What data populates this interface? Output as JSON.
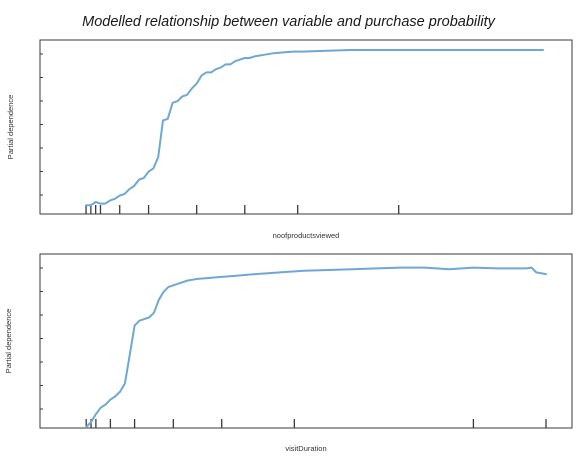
{
  "figure": {
    "title": "Modelled relationship between variable and purchase probability",
    "line_color": "#6fa8d2"
  },
  "chart_data": [
    {
      "type": "line",
      "title": "",
      "xlabel": "noofproductsviewed",
      "ylabel": "Partial dependence",
      "xlim": [
        0,
        100
      ],
      "ylim": [
        0,
        100
      ],
      "grid": false,
      "x": [
        5,
        6,
        7,
        8,
        9,
        10,
        11,
        12,
        13,
        14,
        15,
        16,
        17,
        18,
        19,
        20,
        21,
        22,
        23,
        24,
        25,
        26,
        27,
        28,
        29,
        30,
        31,
        32,
        33,
        34,
        35,
        36,
        37,
        38,
        39,
        40,
        42,
        44,
        46,
        48,
        50,
        55,
        60,
        65,
        70,
        75,
        80,
        85,
        90,
        95,
        100
      ],
      "series": [
        {
          "values": [
            3,
            3,
            5,
            4,
            4,
            6,
            7,
            9,
            10,
            13,
            15,
            19,
            20,
            24,
            26,
            33,
            56,
            57,
            67,
            68,
            71,
            72,
            76,
            79,
            84,
            86,
            86,
            88,
            89,
            91,
            91,
            93,
            94,
            95,
            95,
            96,
            97,
            98,
            98.5,
            99,
            99,
            99.5,
            100,
            100,
            100,
            100,
            100,
            100,
            100,
            100,
            100
          ]
        }
      ],
      "rug": [
        5,
        6,
        7,
        8,
        12,
        18,
        28,
        38,
        49,
        70
      ]
    },
    {
      "type": "line",
      "title": "",
      "xlabel": "visitDuration",
      "ylabel": "Partial dependence",
      "xlim": [
        0,
        100
      ],
      "ylim": [
        0,
        100
      ],
      "grid": false,
      "x": [
        5,
        6,
        7,
        8,
        9,
        10,
        11,
        12,
        13,
        14,
        15,
        16,
        17,
        18,
        19,
        20,
        21,
        22,
        23,
        24,
        25,
        26,
        27,
        28,
        30,
        32,
        34,
        36,
        38,
        40,
        45,
        50,
        55,
        60,
        65,
        70,
        75,
        80,
        85,
        90,
        95,
        96,
        97,
        98,
        100
      ],
      "series": [
        {
          "values": [
            0,
            3,
            8,
            12,
            14,
            17,
            19,
            22,
            27,
            45,
            63,
            66,
            67,
            68,
            71,
            79,
            84,
            87,
            88,
            89,
            90,
            91,
            91.5,
            92,
            92.5,
            93,
            93.5,
            94,
            94.5,
            95,
            96,
            97,
            97.5,
            98,
            98.5,
            99,
            99,
            98,
            99,
            98.5,
            98.5,
            98.5,
            99,
            96,
            95
          ]
        }
      ],
      "rug": [
        5,
        6,
        7,
        10,
        15,
        23,
        33,
        48,
        85,
        100
      ]
    }
  ]
}
